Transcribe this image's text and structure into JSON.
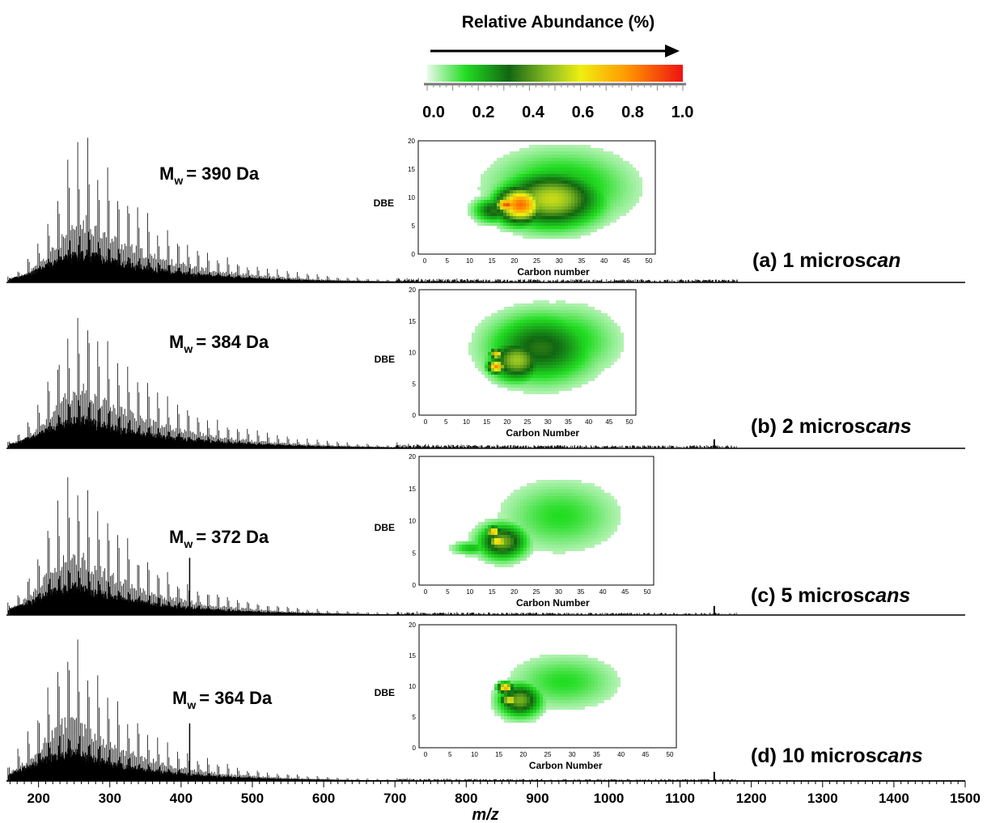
{
  "colorbar": {
    "title": "Relative Abundance (%)",
    "ticks": [
      "0.0",
      "0.2",
      "0.4",
      "0.6",
      "0.8",
      "1.0"
    ],
    "stops": [
      {
        "pos": 0.0,
        "color": "#e9fbe9"
      },
      {
        "pos": 0.15,
        "color": "#22dd22"
      },
      {
        "pos": 0.32,
        "color": "#116611"
      },
      {
        "pos": 0.47,
        "color": "#88bb22"
      },
      {
        "pos": 0.6,
        "color": "#eeee11"
      },
      {
        "pos": 0.78,
        "color": "#ff9900"
      },
      {
        "pos": 1.0,
        "color": "#ee1111"
      }
    ]
  },
  "mz_axis": {
    "label": "m/z",
    "ticks": [
      "200",
      "300",
      "400",
      "500",
      "600",
      "700",
      "800",
      "900",
      "1000",
      "1100",
      "1200",
      "1300",
      "1400",
      "1500"
    ],
    "xlim": [
      155,
      1500
    ]
  },
  "chart_data": [
    {
      "type": "bar",
      "panel": "(a) 1 microscan",
      "label_prefix": "(a) 1 micros",
      "label_italic": "can",
      "mw_text": "= 390  Da",
      "x_center": 270,
      "x_decay": 110,
      "peak_x": [
        155,
        1500
      ],
      "spike": null,
      "tail_noise": 0.02,
      "inset": {
        "type": "heatmap",
        "xlabel": "Carbon number",
        "ylabel": "DBE",
        "xticks": [
          "0",
          "5",
          "10",
          "15",
          "20",
          "25",
          "30",
          "35",
          "40",
          "45",
          "50"
        ],
        "yticks": [
          "0",
          "5",
          "10",
          "15",
          "20"
        ],
        "xlim": [
          0,
          50
        ],
        "ylim": [
          0,
          20
        ],
        "blobs": [
          {
            "c": 28,
            "d": 10,
            "rc": 10,
            "rd": 4.5,
            "v": 0.55
          },
          {
            "c": 21,
            "d": 9,
            "rc": 5,
            "rd": 3,
            "v": 0.85
          },
          {
            "c": 18,
            "d": 9,
            "rc": 2.5,
            "rd": 1.2,
            "v": 0.9
          },
          {
            "c": 30,
            "d": 12,
            "rc": 14,
            "rd": 6,
            "v": 0.22
          },
          {
            "c": 15,
            "d": 8,
            "rc": 4,
            "rd": 2,
            "v": 0.35
          }
        ]
      }
    },
    {
      "type": "bar",
      "panel": "(b) 2 microscans",
      "label_prefix": "(b) 2 micros",
      "label_italic": "cans",
      "mw_text": "= 384 Da",
      "x_center": 265,
      "x_decay": 115,
      "spike": 1148,
      "tail_noise": 0.02,
      "inset": {
        "type": "heatmap",
        "xlabel": "Carbon Number",
        "ylabel": "DBE",
        "xticks": [
          "0",
          "5",
          "10",
          "15",
          "20",
          "25",
          "30",
          "35",
          "40",
          "45",
          "50"
        ],
        "yticks": [
          "0",
          "5",
          "10",
          "15",
          "20"
        ],
        "xlim": [
          0,
          50
        ],
        "ylim": [
          0,
          20
        ],
        "blobs": [
          {
            "c": 28,
            "d": 11,
            "rc": 12,
            "rd": 5,
            "v": 0.35
          },
          {
            "c": 22,
            "d": 9,
            "rc": 6,
            "rd": 3,
            "v": 0.5
          },
          {
            "c": 17,
            "d": 8,
            "rc": 2,
            "rd": 1,
            "v": 0.8
          },
          {
            "c": 17,
            "d": 10,
            "rc": 1.5,
            "rd": 0.8,
            "v": 0.7
          },
          {
            "c": 33,
            "d": 12,
            "rc": 12,
            "rd": 5,
            "v": 0.2
          }
        ]
      }
    },
    {
      "type": "bar",
      "panel": "(c) 5 microscans",
      "label_prefix": "(c) 5 micros",
      "label_italic": "cans",
      "mw_text": "= 372 Da",
      "x_center": 255,
      "x_decay": 105,
      "spike": 1148,
      "tail_noise": 0.015,
      "inset": {
        "type": "heatmap",
        "xlabel": "Carbon Number",
        "ylabel": "DBE",
        "xticks": [
          "0",
          "5",
          "10",
          "15",
          "20",
          "25",
          "30",
          "35",
          "40",
          "45",
          "50"
        ],
        "yticks": [
          "0",
          "5",
          "10",
          "15",
          "20"
        ],
        "xlim": [
          0,
          50
        ],
        "ylim": [
          0,
          20
        ],
        "blobs": [
          {
            "c": 17,
            "d": 7,
            "rc": 5,
            "rd": 2.5,
            "v": 0.45
          },
          {
            "c": 15,
            "d": 8.5,
            "rc": 1.5,
            "rd": 0.8,
            "v": 0.75
          },
          {
            "c": 16,
            "d": 7,
            "rc": 2,
            "rd": 1,
            "v": 0.7
          },
          {
            "c": 30,
            "d": 11,
            "rc": 12,
            "rd": 5,
            "v": 0.15
          },
          {
            "c": 10,
            "d": 6,
            "rc": 4,
            "rd": 1,
            "v": 0.2
          }
        ]
      }
    },
    {
      "type": "bar",
      "panel": "(d) 10 microscans",
      "label_prefix": "(d) 10 micros",
      "label_italic": "cans",
      "mw_text": "= 364 Da",
      "x_center": 250,
      "x_decay": 100,
      "spike": 1148,
      "tail_noise": 0.012,
      "inset": {
        "type": "heatmap",
        "xlabel": "Carbon Number",
        "ylabel": "DBE",
        "xticks": [
          "0",
          "5",
          "10",
          "15",
          "20",
          "25",
          "30",
          "35",
          "40",
          "45",
          "50"
        ],
        "yticks": [
          "0",
          "5",
          "10",
          "15",
          "20"
        ],
        "xlim": [
          0,
          50
        ],
        "ylim": [
          0,
          20
        ],
        "blobs": [
          {
            "c": 19,
            "d": 8,
            "rc": 4,
            "rd": 2.5,
            "v": 0.45
          },
          {
            "c": 16,
            "d": 10,
            "rc": 1.5,
            "rd": 0.8,
            "v": 0.75
          },
          {
            "c": 17,
            "d": 8,
            "rc": 2,
            "rd": 1,
            "v": 0.6
          },
          {
            "c": 28,
            "d": 11,
            "rc": 10,
            "rd": 4,
            "v": 0.15
          }
        ]
      }
    }
  ]
}
